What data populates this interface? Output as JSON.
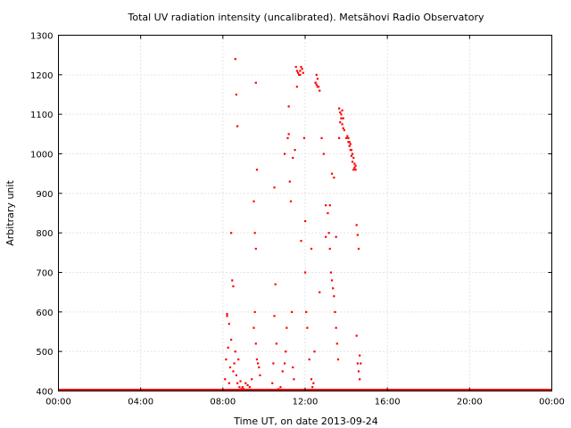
{
  "chart_data": {
    "type": "scatter",
    "title": "Total UV radiation intensity (uncalibrated). Metsähovi Radio Observatory",
    "xlabel": "Time UT, on date 2013-09-24",
    "ylabel": "Arbitrary unit",
    "xlim": [
      0,
      24
    ],
    "ylim": [
      400,
      1300
    ],
    "x_ticks": [
      {
        "value": 0,
        "label": "00:00"
      },
      {
        "value": 4,
        "label": "04:00"
      },
      {
        "value": 8,
        "label": "08:00"
      },
      {
        "value": 12,
        "label": "12:00"
      },
      {
        "value": 16,
        "label": "16:00"
      },
      {
        "value": 20,
        "label": "20:00"
      },
      {
        "value": 24,
        "label": "00:00"
      }
    ],
    "y_ticks": [
      400,
      500,
      600,
      700,
      800,
      900,
      1000,
      1100,
      1200,
      1300
    ],
    "grid": true,
    "marker_color": "#ff0000",
    "baseline": {
      "value": 400,
      "x_range": [
        0,
        24
      ]
    },
    "series": [
      {
        "x": [
          8.1,
          8.15,
          8.2,
          8.25,
          8.3,
          8.35,
          8.4,
          8.45,
          8.5,
          8.55,
          8.6,
          8.65,
          8.7,
          8.75,
          8.8,
          8.85,
          8.9,
          8.95,
          9.0,
          9.1,
          9.2,
          9.3,
          9.4,
          9.5,
          9.55,
          9.6,
          9.65,
          9.7,
          9.75,
          9.8,
          10.4,
          10.45,
          10.5,
          10.55,
          10.6,
          10.7,
          10.8,
          10.9,
          11.0,
          11.05,
          11.1,
          11.15,
          11.2,
          11.25,
          11.3,
          11.35,
          11.4,
          11.45,
          11.5,
          11.6,
          11.7,
          11.75,
          11.8,
          11.85,
          11.9,
          11.95,
          12.0,
          12.05,
          12.1,
          12.2,
          12.3,
          12.35,
          12.4,
          12.45,
          12.5,
          12.55,
          12.6,
          12.65,
          12.7,
          12.8,
          12.9,
          13.0,
          13.1,
          13.15,
          13.2,
          13.25,
          13.3,
          13.35,
          13.4,
          13.45,
          13.5,
          13.55,
          13.6,
          13.65,
          13.7,
          13.75,
          13.8,
          13.85,
          13.9,
          14.0,
          14.1,
          14.15,
          14.2,
          14.25,
          14.3,
          14.35,
          14.4,
          14.45,
          14.5,
          14.55,
          14.6,
          14.65,
          14.7,
          8.6,
          8.65,
          8.7,
          9.6,
          9.65,
          11.55,
          11.6,
          11.65,
          11.75,
          12.5,
          12.55,
          12.6,
          13.65,
          13.7,
          13.75,
          13.8,
          13.85,
          14.05,
          14.1,
          14.15,
          14.2,
          14.25,
          14.3,
          14.35,
          14.4,
          14.45,
          8.2,
          8.3,
          8.4,
          8.5,
          9.5,
          9.55,
          9.6,
          10.5,
          11.0,
          11.2,
          11.4,
          11.8,
          12.0,
          12.3,
          12.7,
          13.0,
          13.2,
          13.3,
          13.4,
          13.5,
          14.5,
          14.55,
          14.6,
          14.65
        ],
        "y": [
          430,
          480,
          590,
          510,
          420,
          460,
          530,
          680,
          450,
          470,
          500,
          440,
          420,
          480,
          410,
          425,
          405,
          410,
          405,
          420,
          415,
          410,
          430,
          560,
          600,
          520,
          480,
          470,
          460,
          440,
          420,
          470,
          590,
          670,
          520,
          405,
          410,
          450,
          470,
          500,
          560,
          1040,
          1120,
          930,
          880,
          600,
          460,
          430,
          1010,
          1170,
          1200,
          1210,
          1220,
          1215,
          1205,
          1040,
          830,
          600,
          560,
          480,
          430,
          410,
          420,
          500,
          1180,
          1200,
          1190,
          1170,
          1160,
          1040,
          1000,
          870,
          850,
          800,
          760,
          700,
          680,
          660,
          640,
          600,
          560,
          520,
          480,
          1040,
          1080,
          1100,
          1110,
          1090,
          1060,
          1040,
          1030,
          1020,
          1010,
          995,
          980,
          960,
          965,
          970,
          820,
          795,
          760,
          490,
          470,
          1240,
          1150,
          1070,
          1180,
          960,
          1220,
          1210,
          1205,
          1200,
          1180,
          1175,
          1170,
          1115,
          1105,
          1090,
          1075,
          1065,
          1045,
          1040,
          1030,
          1025,
          1010,
          1000,
          990,
          975,
          960,
          595,
          570,
          800,
          665,
          880,
          800,
          760,
          915,
          1000,
          1050,
          990,
          780,
          700,
          760,
          650,
          790,
          870,
          950,
          940,
          790,
          540,
          470,
          450,
          430
        ]
      }
    ]
  }
}
